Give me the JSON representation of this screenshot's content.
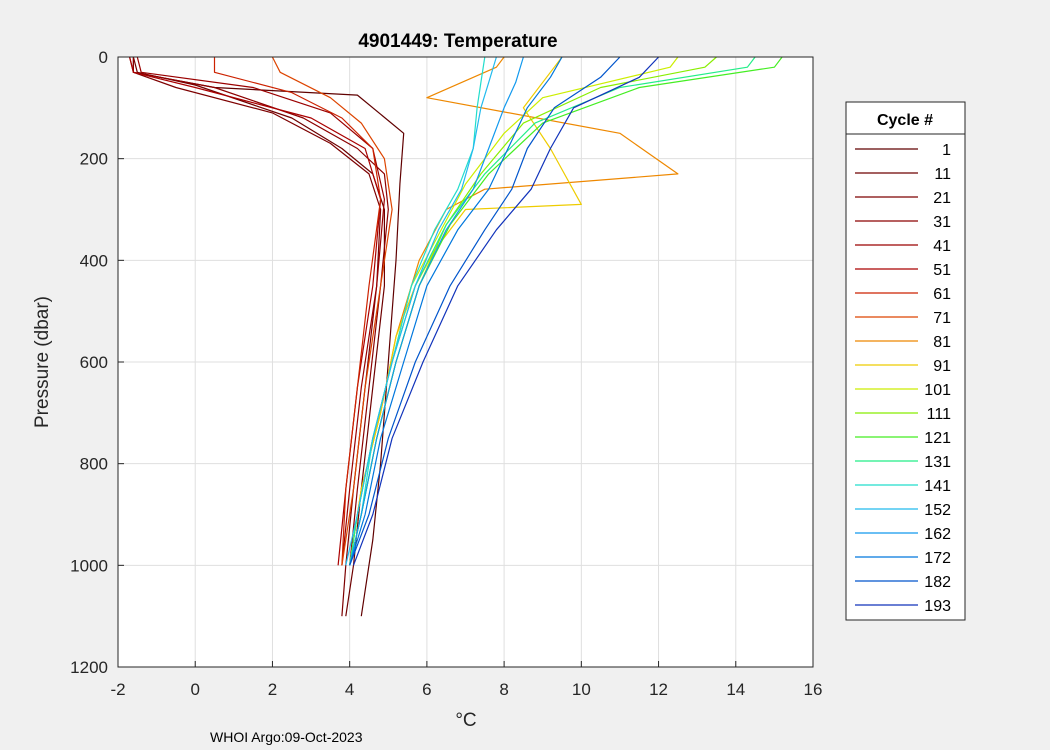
{
  "chart_data": {
    "type": "line",
    "title": "4901449:  Temperature",
    "xlabel": "°C",
    "ylabel": "Pressure (dbar)",
    "xlim": [
      -2,
      16
    ],
    "ylim": [
      0,
      1200
    ],
    "y_reversed": true,
    "grid": true,
    "x_ticks": [
      "-2",
      "0",
      "2",
      "4",
      "6",
      "8",
      "10",
      "12",
      "14",
      "16"
    ],
    "y_ticks": [
      "0",
      "200",
      "400",
      "600",
      "800",
      "1000",
      "1200"
    ],
    "legend": {
      "title": "Cycle #",
      "placement": "right",
      "entries": [
        "1",
        "11",
        "21",
        "31",
        "41",
        "51",
        "61",
        "71",
        "81",
        "91",
        "101",
        "111",
        "121",
        "131",
        "141",
        "152",
        "162",
        "172",
        "182",
        "193"
      ]
    },
    "series": [
      {
        "name": "1",
        "color": "#600000",
        "x": [
          -1.6,
          -1.6,
          0.5,
          4.2,
          5.4,
          5.3,
          5.2,
          5.0,
          4.8,
          4.6,
          4.4,
          4.3
        ],
        "y": [
          0,
          30,
          60,
          75,
          150,
          250,
          400,
          600,
          800,
          950,
          1050,
          1100
        ]
      },
      {
        "name": "11",
        "color": "#6e0000",
        "x": [
          -1.6,
          -1.5,
          0.0,
          2.5,
          3.8,
          4.6,
          4.9,
          4.9,
          4.6,
          4.3,
          4.1,
          3.9
        ],
        "y": [
          0,
          30,
          55,
          120,
          180,
          230,
          300,
          450,
          650,
          850,
          1000,
          1100
        ]
      },
      {
        "name": "21",
        "color": "#7d0000",
        "x": [
          -1.7,
          -1.6,
          -0.5,
          2.0,
          3.5,
          4.5,
          4.8,
          4.7,
          4.4,
          4.1,
          3.9,
          3.8
        ],
        "y": [
          0,
          30,
          60,
          110,
          170,
          230,
          300,
          450,
          650,
          850,
          1000,
          1100
        ]
      },
      {
        "name": "31",
        "color": "#8c0000",
        "x": [
          -1.6,
          -1.6,
          0.5,
          2.8,
          4.2,
          4.9,
          5.0,
          4.8,
          4.5,
          4.2,
          4.0
        ],
        "y": [
          0,
          30,
          60,
          120,
          180,
          230,
          300,
          450,
          650,
          850,
          1000
        ]
      },
      {
        "name": "41",
        "color": "#9a0000",
        "x": [
          -1.5,
          -1.4,
          1.5,
          3.5,
          4.6,
          4.9,
          4.7,
          4.3,
          4.0,
          3.8
        ],
        "y": [
          0,
          30,
          60,
          110,
          180,
          280,
          450,
          650,
          850,
          1000
        ]
      },
      {
        "name": "51",
        "color": "#aa0000",
        "x": [
          -1.7,
          -1.6,
          0.0,
          3.0,
          4.4,
          4.8,
          4.6,
          4.2,
          3.9,
          3.7
        ],
        "y": [
          0,
          30,
          60,
          120,
          180,
          280,
          450,
          650,
          850,
          1000
        ]
      },
      {
        "name": "61",
        "color": "#cc2200",
        "x": [
          0.5,
          0.5,
          2.5,
          3.8,
          4.6,
          4.8,
          4.5,
          4.2,
          3.9,
          3.8
        ],
        "y": [
          0,
          30,
          70,
          120,
          180,
          280,
          450,
          650,
          850,
          1000
        ]
      },
      {
        "name": "71",
        "color": "#dd4400",
        "x": [
          2.0,
          2.2,
          3.5,
          4.3,
          4.9,
          5.1,
          4.8,
          4.4,
          4.1,
          3.8
        ],
        "y": [
          0,
          30,
          80,
          130,
          200,
          300,
          450,
          650,
          850,
          1000
        ]
      },
      {
        "name": "81",
        "color": "#ee8800",
        "x": [
          8.0,
          7.8,
          6.0,
          11.0,
          12.5,
          7.5,
          6.5,
          5.8,
          5.2,
          4.8,
          4.3,
          4.0
        ],
        "y": [
          0,
          20,
          80,
          150,
          230,
          260,
          300,
          400,
          550,
          700,
          850,
          1000
        ]
      },
      {
        "name": "91",
        "color": "#eecc00",
        "x": [
          9.5,
          9.3,
          8.5,
          9.2,
          10.0,
          7.0,
          6.2,
          5.7,
          5.2,
          4.8,
          4.3,
          4.0
        ],
        "y": [
          0,
          20,
          100,
          180,
          290,
          300,
          380,
          450,
          550,
          700,
          850,
          1000
        ]
      },
      {
        "name": "101",
        "color": "#ccee00",
        "x": [
          12.5,
          12.3,
          9.0,
          8.0,
          7.0,
          6.3,
          5.6,
          5.1,
          4.6,
          4.2,
          4.0
        ],
        "y": [
          0,
          20,
          80,
          150,
          250,
          350,
          450,
          600,
          750,
          900,
          1000
        ]
      },
      {
        "name": "111",
        "color": "#88ee00",
        "x": [
          13.5,
          13.2,
          10.5,
          8.5,
          7.4,
          6.5,
          5.8,
          5.2,
          4.7,
          4.3,
          4.0
        ],
        "y": [
          0,
          20,
          60,
          130,
          230,
          330,
          450,
          600,
          750,
          900,
          1000
        ]
      },
      {
        "name": "121",
        "color": "#44ee22",
        "x": [
          15.2,
          15.0,
          11.5,
          9.0,
          7.6,
          6.6,
          5.8,
          5.2,
          4.7,
          4.3,
          4.0
        ],
        "y": [
          0,
          20,
          60,
          130,
          230,
          330,
          450,
          600,
          750,
          900,
          1000
        ]
      },
      {
        "name": "131",
        "color": "#22ee88",
        "x": [
          14.5,
          14.3,
          11.0,
          8.8,
          7.5,
          6.5,
          5.7,
          5.1,
          4.6,
          4.2,
          4.0
        ],
        "y": [
          0,
          20,
          60,
          130,
          230,
          330,
          450,
          600,
          750,
          900,
          1000
        ]
      },
      {
        "name": "141",
        "color": "#22ddcc",
        "x": [
          7.5,
          7.4,
          7.3,
          7.2,
          6.8,
          6.2,
          5.6,
          5.1,
          4.6,
          4.3,
          4.0
        ],
        "y": [
          0,
          50,
          100,
          180,
          260,
          340,
          450,
          600,
          750,
          900,
          1000
        ]
      },
      {
        "name": "152",
        "color": "#22bbee",
        "x": [
          7.8,
          7.6,
          7.4,
          7.2,
          6.9,
          6.3,
          5.7,
          5.1,
          4.6,
          4.2,
          3.9
        ],
        "y": [
          0,
          50,
          100,
          180,
          260,
          340,
          450,
          600,
          750,
          900,
          1000
        ]
      },
      {
        "name": "162",
        "color": "#1199ee",
        "x": [
          8.5,
          8.3,
          8.0,
          7.6,
          7.2,
          6.5,
          5.8,
          5.2,
          4.7,
          4.3,
          4.0
        ],
        "y": [
          0,
          50,
          100,
          180,
          260,
          340,
          450,
          600,
          750,
          900,
          1000
        ]
      },
      {
        "name": "172",
        "color": "#0077dd",
        "x": [
          9.5,
          9.2,
          8.6,
          8.1,
          7.6,
          6.8,
          6.0,
          5.4,
          4.8,
          4.4,
          4.0
        ],
        "y": [
          0,
          40,
          100,
          180,
          260,
          340,
          450,
          600,
          750,
          900,
          1000
        ]
      },
      {
        "name": "182",
        "color": "#0055cc",
        "x": [
          11.0,
          10.5,
          9.3,
          8.6,
          8.2,
          7.5,
          6.6,
          5.7,
          5.0,
          4.5,
          4.0
        ],
        "y": [
          0,
          40,
          100,
          180,
          260,
          340,
          450,
          600,
          750,
          900,
          1000
        ]
      },
      {
        "name": "193",
        "color": "#1133bb",
        "x": [
          12.0,
          11.5,
          9.8,
          9.2,
          8.7,
          7.8,
          6.8,
          5.9,
          5.1,
          4.6,
          4.1
        ],
        "y": [
          0,
          40,
          100,
          180,
          260,
          340,
          450,
          600,
          750,
          900,
          1000
        ]
      }
    ]
  },
  "footer": {
    "text": "WHOI Argo:09-Oct-2023"
  },
  "colors": {
    "figure_background": "#f0f0f0",
    "axes_background": "#ffffff",
    "grid": "#dfdfdf",
    "axis": "#262626"
  }
}
